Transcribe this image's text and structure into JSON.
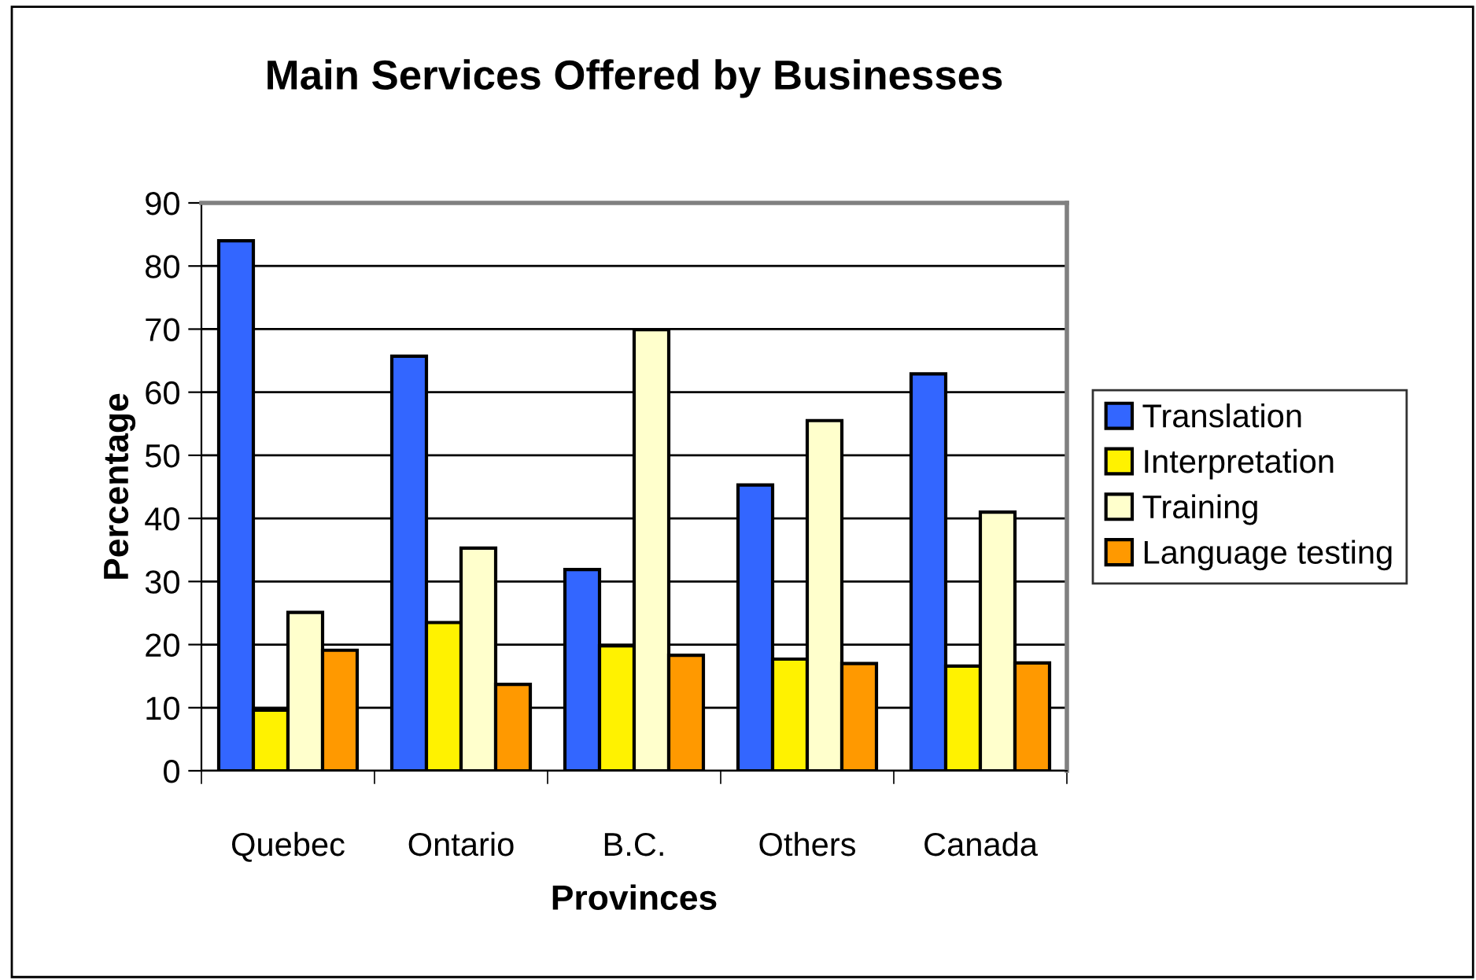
{
  "chart_data": {
    "type": "bar",
    "title": "Main Services Offered by Businesses",
    "xlabel": "Provinces",
    "ylabel": "Percentage",
    "categories": [
      "Quebec",
      "Ontario",
      "B.C.",
      "Others",
      "Canada"
    ],
    "series": [
      {
        "name": "Translation",
        "color": "#3366ff",
        "values": [
          84,
          65.7,
          31.9,
          45.3,
          62.9
        ]
      },
      {
        "name": "Interpretation",
        "color": "#fff200",
        "values": [
          9.6,
          23.5,
          19.8,
          17.7,
          16.6
        ]
      },
      {
        "name": "Training",
        "color": "#ffffcc",
        "values": [
          25.1,
          35.3,
          69.9,
          55.5,
          41
        ]
      },
      {
        "name": "Language testing",
        "color": "#ff9900",
        "values": [
          19.1,
          13.7,
          18.3,
          17,
          17.1
        ]
      }
    ],
    "ylim": [
      0,
      90
    ],
    "yticks": [
      0,
      10,
      20,
      30,
      40,
      50,
      60,
      70,
      80,
      90
    ],
    "grid": "y",
    "legend": "right"
  }
}
